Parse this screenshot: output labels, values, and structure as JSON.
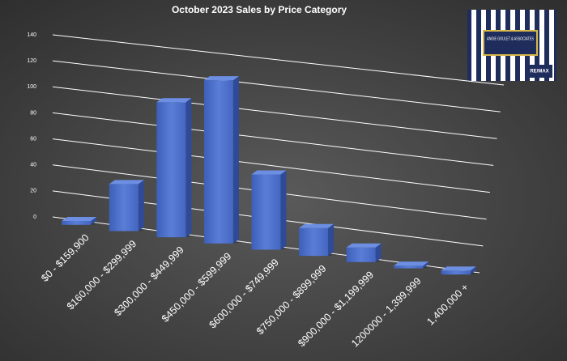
{
  "chart_data": {
    "type": "bar3d",
    "title": "October 2023 Sales by Price Category",
    "categories": [
      "$0 - $159,900",
      "$160,000 - $299,999",
      "$300,000 - $449,999",
      "$450,000 - $599,999",
      "$600,000 - $749,999",
      "$750,000 - $899,999",
      "$900,000 - $1,199,999",
      "1200000 - 1,399,999",
      "1,400,000 +"
    ],
    "values": [
      3,
      36,
      103,
      124,
      57,
      21,
      11,
      2,
      3
    ],
    "color": "#4a6cc8",
    "ylim": [
      0,
      140
    ],
    "yticks": [
      0,
      20,
      40,
      60,
      80,
      100,
      120,
      140
    ],
    "grid": true
  },
  "logo": {
    "name": "ANGIE GOULET & ASSOCIATES",
    "brand": "RE/MAX"
  }
}
